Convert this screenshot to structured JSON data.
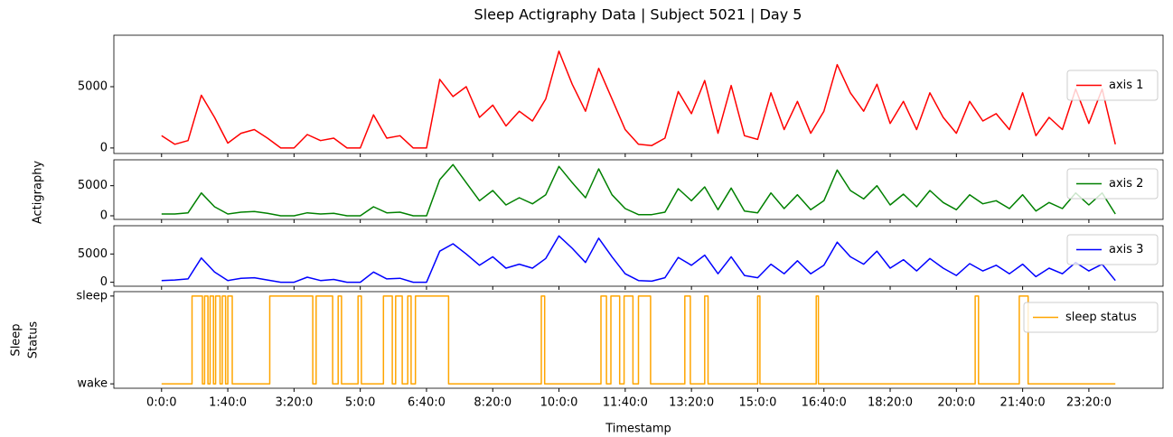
{
  "chart_data": [
    {
      "type": "line",
      "title": "Sleep Actigraphy Data | Subject 5021 | Day 5",
      "x": [
        0,
        1200,
        2400,
        3600,
        4800,
        6000,
        7200,
        8400,
        9600,
        10800,
        12000,
        13200,
        14400,
        15600,
        16800,
        18000,
        19200,
        20400,
        21600,
        22800,
        24000,
        25200,
        26400,
        27600,
        28800,
        30000,
        31200,
        32400,
        33600,
        34800,
        36000,
        37200,
        38400,
        39600,
        40800,
        42000,
        43200,
        44400,
        45600,
        46800,
        48000,
        49200,
        50400,
        51600,
        52800,
        54000,
        55200,
        56400,
        57600,
        58800,
        60000,
        61200,
        62400,
        63600,
        64800,
        66000,
        67200,
        68400,
        69600,
        70800,
        72000,
        73200,
        74400,
        75600,
        76800,
        78000,
        79200,
        80400,
        81600,
        82800,
        84000,
        85200,
        86400
      ],
      "xlim": [
        -4320,
        90720
      ],
      "ylim": [
        -450,
        9200
      ],
      "yticks": [
        0,
        5000
      ],
      "legend": "upper right",
      "series": [
        {
          "name": "axis 1",
          "color": "#ff0000",
          "values": [
            1000,
            300,
            600,
            4300,
            2500,
            400,
            1200,
            1500,
            800,
            0,
            0,
            1100,
            600,
            800,
            0,
            0,
            2700,
            800,
            1000,
            0,
            0,
            5600,
            4200,
            5000,
            2500,
            3500,
            1800,
            3000,
            2200,
            4000,
            7900,
            5200,
            3000,
            6500,
            4000,
            1500,
            300,
            200,
            800,
            4600,
            2800,
            5500,
            1200,
            5100,
            1000,
            700,
            4500,
            1500,
            3800,
            1200,
            3000,
            6800,
            4500,
            3000,
            5200,
            2000,
            3800,
            1500,
            4500,
            2500,
            1200,
            3800,
            2200,
            2800,
            1500,
            4500,
            1000,
            2500,
            1500,
            4800,
            2000,
            4800,
            300
          ]
        }
      ]
    },
    {
      "type": "line",
      "ylabel": "Actigraphy",
      "xlim": [
        -4320,
        90720
      ],
      "ylim": [
        -600,
        9300
      ],
      "yticks": [
        0,
        5000
      ],
      "legend": "upper right",
      "series": [
        {
          "name": "axis 2",
          "color": "#008000",
          "values": [
            300,
            300,
            500,
            3800,
            1500,
            300,
            600,
            700,
            400,
            0,
            0,
            500,
            300,
            400,
            0,
            0,
            1500,
            500,
            600,
            0,
            0,
            6000,
            8500,
            5500,
            2500,
            4200,
            1800,
            3000,
            2000,
            3500,
            8200,
            5500,
            3000,
            7800,
            3500,
            1200,
            200,
            200,
            600,
            4500,
            2500,
            4800,
            1000,
            4600,
            800,
            500,
            3800,
            1200,
            3500,
            1000,
            2500,
            7600,
            4200,
            2800,
            5000,
            1800,
            3600,
            1500,
            4200,
            2200,
            1000,
            3500,
            2000,
            2500,
            1200,
            3500,
            800,
            2200,
            1200,
            3800,
            1800,
            3800,
            300
          ]
        }
      ]
    },
    {
      "type": "line",
      "xlim": [
        -4320,
        90720
      ],
      "ylim": [
        -700,
        10000
      ],
      "yticks": [
        0,
        5000
      ],
      "legend": "upper right",
      "series": [
        {
          "name": "axis 3",
          "color": "#0000ff",
          "values": [
            300,
            400,
            600,
            4300,
            1800,
            300,
            700,
            800,
            400,
            0,
            0,
            900,
            300,
            500,
            0,
            0,
            1800,
            600,
            700,
            0,
            0,
            5500,
            6800,
            5000,
            3000,
            4500,
            2500,
            3200,
            2500,
            4200,
            8200,
            6000,
            3500,
            7800,
            4500,
            1500,
            300,
            200,
            800,
            4400,
            3000,
            4800,
            1500,
            4500,
            1200,
            800,
            3200,
            1500,
            3800,
            1500,
            3000,
            7100,
            4500,
            3200,
            5500,
            2500,
            4000,
            2000,
            4200,
            2500,
            1200,
            3300,
            2000,
            3000,
            1500,
            3200,
            1000,
            2500,
            1500,
            3500,
            2000,
            3200,
            300
          ]
        }
      ]
    },
    {
      "type": "step",
      "ylabel": [
        "Sleep",
        "Status"
      ],
      "xlabel": "Timestamp",
      "x": [
        0,
        2760,
        3700,
        3900,
        4200,
        4400,
        4700,
        4900,
        5300,
        5500,
        5800,
        6000,
        6400,
        9800,
        13700,
        14000,
        15500,
        16000,
        16300,
        17800,
        18100,
        20100,
        20900,
        21200,
        21800,
        22300,
        22600,
        23000,
        26000,
        34400,
        34700,
        39800,
        40300,
        40700,
        41500,
        41900,
        42700,
        43200,
        44300,
        47400,
        47900,
        49200,
        49500,
        54000,
        54200,
        59300,
        59500,
        73700,
        74000,
        77700,
        78500,
        86400
      ],
      "xlim": [
        -4320,
        90720
      ],
      "ylim": [
        -0.05,
        1.05
      ],
      "yticks": [
        {
          "value": 0,
          "label": "wake"
        },
        {
          "value": 1,
          "label": "sleep"
        }
      ],
      "xticks": [
        {
          "value": 0,
          "label": "0:0:0"
        },
        {
          "value": 6000,
          "label": "1:40:0"
        },
        {
          "value": 12000,
          "label": "3:20:0"
        },
        {
          "value": 18000,
          "label": "5:0:0"
        },
        {
          "value": 24000,
          "label": "6:40:0"
        },
        {
          "value": 30000,
          "label": "8:20:0"
        },
        {
          "value": 36000,
          "label": "10:0:0"
        },
        {
          "value": 42000,
          "label": "11:40:0"
        },
        {
          "value": 48000,
          "label": "13:20:0"
        },
        {
          "value": 54000,
          "label": "15:0:0"
        },
        {
          "value": 60000,
          "label": "16:40:0"
        },
        {
          "value": 66000,
          "label": "18:20:0"
        },
        {
          "value": 72000,
          "label": "20:0:0"
        },
        {
          "value": 78000,
          "label": "21:40:0"
        },
        {
          "value": 84000,
          "label": "23:20:0"
        }
      ],
      "legend": "upper right",
      "series": [
        {
          "name": "sleep status",
          "color": "#ffa500",
          "values": [
            0,
            1,
            0,
            1,
            0,
            1,
            0,
            1,
            0,
            1,
            0,
            1,
            0,
            1,
            0,
            1,
            0,
            1,
            0,
            1,
            0,
            1,
            0,
            1,
            0,
            1,
            0,
            1,
            0,
            1,
            0,
            1,
            0,
            1,
            0,
            1,
            0,
            1,
            0,
            1,
            0,
            1,
            0,
            1,
            0,
            1,
            0,
            1,
            0,
            1,
            0,
            0
          ]
        }
      ]
    }
  ]
}
